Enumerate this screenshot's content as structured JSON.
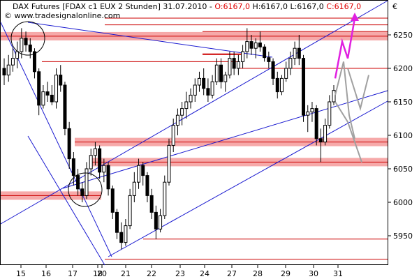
{
  "chart_data": {
    "type": "candlestick",
    "title": {
      "symbol": "DAX Futures [FDAX c1 EUX  2 Stunden] 31.07.2010 - ",
      "open": "O:6167,0",
      "high": "H:6167,0",
      "low": "L:6167,0",
      "close": "C:6167,0"
    },
    "watermark": "© www.tradesignalonline.com",
    "currency": "€",
    "x_ticks": [
      "15",
      "16",
      "17",
      "18",
      "20",
      "21",
      "22",
      "23",
      "24",
      "27",
      "28",
      "29",
      "30",
      "31"
    ],
    "y_ticks": [
      5950,
      6000,
      6050,
      6100,
      6150,
      6200,
      6250
    ],
    "ylim": [
      5900,
      6290
    ],
    "grid": false,
    "candles": [
      [
        6200,
        6215,
        6175,
        6190
      ],
      [
        6190,
        6220,
        6180,
        6205
      ],
      [
        6205,
        6230,
        6195,
        6215
      ],
      [
        6215,
        6240,
        6200,
        6225
      ],
      [
        6225,
        6260,
        6215,
        6245
      ],
      [
        6245,
        6255,
        6225,
        6235
      ],
      [
        6235,
        6245,
        6215,
        6225
      ],
      [
        6225,
        6230,
        6185,
        6195
      ],
      [
        6195,
        6200,
        6130,
        6145
      ],
      [
        6145,
        6175,
        6140,
        6165
      ],
      [
        6165,
        6180,
        6150,
        6160
      ],
      [
        6160,
        6175,
        6145,
        6150
      ],
      [
        6150,
        6200,
        6140,
        6190
      ],
      [
        6190,
        6205,
        6165,
        6175
      ],
      [
        6175,
        6180,
        6100,
        6110
      ],
      [
        6110,
        6120,
        6050,
        6065
      ],
      [
        6065,
        6075,
        6025,
        6040
      ],
      [
        6040,
        6050,
        6010,
        6020
      ],
      [
        6020,
        6030,
        6000,
        6010
      ],
      [
        6010,
        6060,
        6005,
        6050
      ],
      [
        6050,
        6080,
        6040,
        6070
      ],
      [
        6070,
        6090,
        6055,
        6080
      ],
      [
        6080,
        6085,
        6035,
        6045
      ],
      [
        6045,
        6065,
        6030,
        6055
      ],
      [
        6055,
        6060,
        6010,
        6020
      ],
      [
        6020,
        6025,
        5975,
        5985
      ],
      [
        5985,
        5990,
        5945,
        5955
      ],
      [
        5955,
        5970,
        5930,
        5940
      ],
      [
        5940,
        5975,
        5935,
        5965
      ],
      [
        5965,
        6020,
        5960,
        6010
      ],
      [
        6010,
        6045,
        6000,
        6030
      ],
      [
        6030,
        6065,
        6020,
        6055
      ],
      [
        6055,
        6060,
        6025,
        6040
      ],
      [
        6040,
        6045,
        6000,
        6010
      ],
      [
        6010,
        6020,
        5975,
        5985
      ],
      [
        5985,
        5995,
        5945,
        5960
      ],
      [
        5960,
        5990,
        5955,
        5980
      ],
      [
        5980,
        6040,
        5975,
        6030
      ],
      [
        6030,
        6095,
        6025,
        6085
      ],
      [
        6085,
        6125,
        6075,
        6115
      ],
      [
        6115,
        6140,
        6100,
        6130
      ],
      [
        6130,
        6150,
        6115,
        6140
      ],
      [
        6140,
        6165,
        6125,
        6150
      ],
      [
        6150,
        6170,
        6140,
        6160
      ],
      [
        6160,
        6185,
        6150,
        6175
      ],
      [
        6175,
        6195,
        6165,
        6185
      ],
      [
        6185,
        6200,
        6160,
        6170
      ],
      [
        6170,
        6185,
        6150,
        6160
      ],
      [
        6160,
        6190,
        6155,
        6180
      ],
      [
        6180,
        6215,
        6175,
        6205
      ],
      [
        6205,
        6215,
        6170,
        6180
      ],
      [
        6180,
        6195,
        6165,
        6190
      ],
      [
        6190,
        6225,
        6185,
        6215
      ],
      [
        6215,
        6225,
        6190,
        6200
      ],
      [
        6200,
        6220,
        6190,
        6210
      ],
      [
        6210,
        6235,
        6200,
        6225
      ],
      [
        6225,
        6260,
        6215,
        6240
      ],
      [
        6240,
        6250,
        6220,
        6230
      ],
      [
        6230,
        6245,
        6215,
        6238
      ],
      [
        6238,
        6255,
        6225,
        6232
      ],
      [
        6232,
        6236,
        6210,
        6216
      ],
      [
        6216,
        6225,
        6200,
        6210
      ],
      [
        6210,
        6215,
        6175,
        6185
      ],
      [
        6185,
        6195,
        6155,
        6165
      ],
      [
        6165,
        6190,
        6160,
        6185
      ],
      [
        6185,
        6210,
        6180,
        6200
      ],
      [
        6200,
        6225,
        6190,
        6215
      ],
      [
        6215,
        6240,
        6205,
        6230
      ],
      [
        6230,
        6250,
        6205,
        6215
      ],
      [
        6215,
        6220,
        6120,
        6130
      ],
      [
        6130,
        6145,
        6105,
        6135
      ],
      [
        6135,
        6150,
        6120,
        6140
      ],
      [
        6140,
        6145,
        6085,
        6095
      ],
      [
        6095,
        6110,
        6060,
        6090
      ],
      [
        6090,
        6125,
        6085,
        6115
      ],
      [
        6115,
        6160,
        6110,
        6150
      ],
      [
        6150,
        6175,
        6145,
        6167
      ]
    ],
    "support_zones": [
      6248,
      6090,
      6060,
      6010
    ],
    "horizontal_lines": [
      6275,
      6265,
      6200,
      6255,
      6210,
      5945,
      5915
    ],
    "red_short_line": 6220,
    "projections": {
      "magenta": [
        [
          6185
        ],
        [
          6240
        ],
        [
          6215
        ],
        [
          6275
        ]
      ],
      "gray": [
        [
          6160
        ],
        [
          6210
        ],
        [
          6130
        ],
        [
          6095
        ],
        [
          6140
        ],
        [
          6155
        ],
        [
          6185
        ]
      ]
    }
  }
}
